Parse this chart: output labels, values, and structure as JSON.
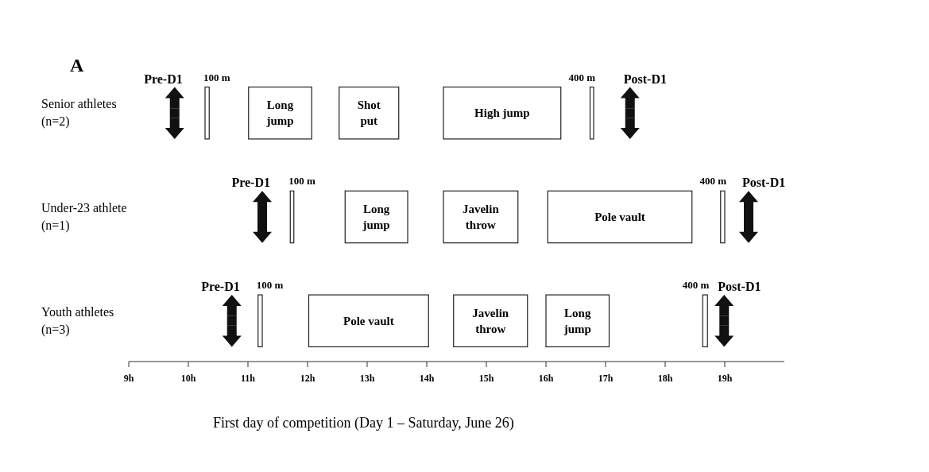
{
  "chart_data": {
    "type": "bar",
    "orientation": "horizontal",
    "title": "A",
    "xlabel": "First day of competition (Day 1 – Saturday, June 26)",
    "categories": [
      "Senior athletes (n=2)",
      "Under-23 athlete (n=1)",
      "Youth athletes (n=3)"
    ],
    "series": [
      {
        "name": "100 m",
        "color": "#ffffff",
        "base": [
          10.28,
          11.71,
          11.17
        ],
        "values": [
          0.07,
          0.06,
          0.07
        ]
      },
      {
        "name": "Long jump",
        "color": "#ffffff",
        "base": [
          11.01,
          12.63,
          16.0
        ],
        "values": [
          1.06,
          1.05,
          1.06
        ]
      },
      {
        "name": "Shot put",
        "color": "#ffffff",
        "base": [
          12.53,
          null,
          null
        ],
        "values": [
          1.0,
          null,
          null
        ]
      },
      {
        "name": "High jump",
        "color": "#ffffff",
        "base": [
          14.28,
          null,
          null
        ],
        "values": [
          1.97,
          null,
          null
        ]
      },
      {
        "name": "Javelin throw",
        "color": "#ffffff",
        "base": [
          null,
          14.28,
          14.45
        ],
        "values": [
          null,
          1.25,
          1.24
        ]
      },
      {
        "name": "Pole vault",
        "color": "#ffffff",
        "base": [
          null,
          16.03,
          12.02
        ],
        "values": [
          null,
          2.42,
          2.01
        ]
      },
      {
        "name": "400 m",
        "color": "#ffffff",
        "base": [
          16.74,
          18.93,
          18.63
        ],
        "values": [
          0.06,
          0.07,
          0.08
        ]
      },
      {
        "name": "Pre-D1",
        "type": "scatter",
        "color": "#111111",
        "values": [
          9.77,
          11.24,
          10.73
        ]
      },
      {
        "name": "Post-D1",
        "type": "scatter",
        "color": "#111111",
        "values": [
          17.41,
          19.4,
          18.99
        ]
      }
    ],
    "xlim": [
      9,
      20
    ],
    "xticks": [
      {
        "value": 9,
        "label": "9h"
      },
      {
        "value": 10,
        "label": "10h"
      },
      {
        "value": 11,
        "label": "11h"
      },
      {
        "value": 12,
        "label": "12h"
      },
      {
        "value": 13,
        "label": "13h"
      },
      {
        "value": 14,
        "label": "14h"
      },
      {
        "value": 15,
        "label": "15h"
      },
      {
        "value": 16,
        "label": "16h"
      },
      {
        "value": 17,
        "label": "17h"
      },
      {
        "value": 18,
        "label": "18h"
      },
      {
        "value": 19,
        "label": "19h"
      }
    ]
  }
}
